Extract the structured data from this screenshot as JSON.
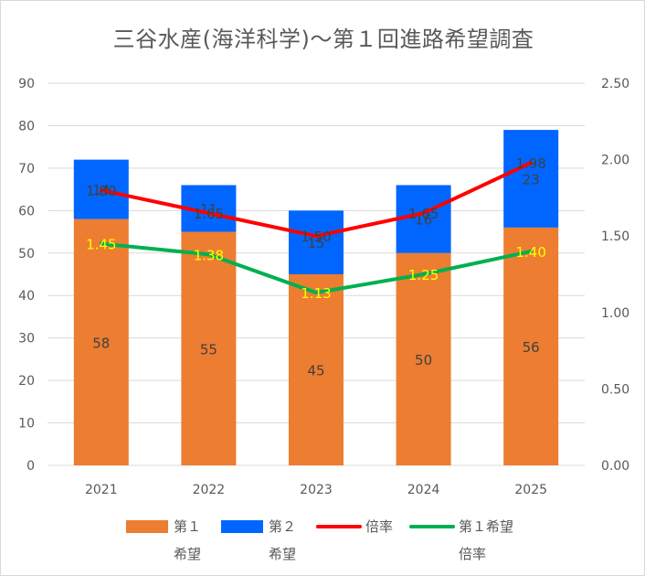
{
  "chart_data": {
    "type": "bar",
    "title": "三谷水産(海洋科学)～第１回進路希望調査",
    "categories": [
      "2021",
      "2022",
      "2023",
      "2024",
      "2025"
    ],
    "stacked": true,
    "series": [
      {
        "name": "第１希望",
        "kind": "bar",
        "axis": "left",
        "color": "#ED7D31",
        "values": [
          58,
          55,
          45,
          50,
          56
        ],
        "labels": [
          "58",
          "55",
          "45",
          "50",
          "56"
        ]
      },
      {
        "name": "第２希望",
        "kind": "bar",
        "axis": "left",
        "color": "#0066FF",
        "values": [
          14,
          11,
          15,
          16,
          23
        ],
        "labels": [
          "14",
          "11",
          "15",
          "16",
          "23"
        ]
      },
      {
        "name": "倍率",
        "kind": "line",
        "axis": "right",
        "color": "#FF0000",
        "values": [
          1.8,
          1.65,
          1.5,
          1.65,
          1.98
        ],
        "labels": [
          "1.80",
          "1.65",
          "1.50",
          "1.65",
          "1.98"
        ]
      },
      {
        "name": "第１希望倍率",
        "kind": "line",
        "axis": "right",
        "color": "#00B050",
        "label_color": "#FFFF00",
        "values": [
          1.45,
          1.38,
          1.13,
          1.25,
          1.4
        ],
        "labels": [
          "1.45",
          "1.38",
          "1.13",
          "1.25",
          "1.40"
        ]
      }
    ],
    "y_left": {
      "min": 0,
      "max": 90,
      "step": 10,
      "ticks": [
        "0",
        "10",
        "20",
        "30",
        "40",
        "50",
        "60",
        "70",
        "80",
        "90"
      ]
    },
    "y_right": {
      "min": 0,
      "max": 2.5,
      "step": 0.5,
      "ticks": [
        "0.00",
        "0.50",
        "1.00",
        "1.50",
        "2.00",
        "2.50"
      ]
    },
    "grid": true,
    "legend_position": "bottom",
    "legend": [
      {
        "line1": "第１",
        "line2": "希望",
        "color": "#ED7D31",
        "kind": "bar"
      },
      {
        "line1": "第２",
        "line2": "希望",
        "color": "#0066FF",
        "kind": "bar"
      },
      {
        "line1": "倍率",
        "line2": "",
        "color": "#FF0000",
        "kind": "line"
      },
      {
        "line1": "第１希望",
        "line2": "倍率",
        "color": "#00B050",
        "kind": "line"
      }
    ]
  }
}
